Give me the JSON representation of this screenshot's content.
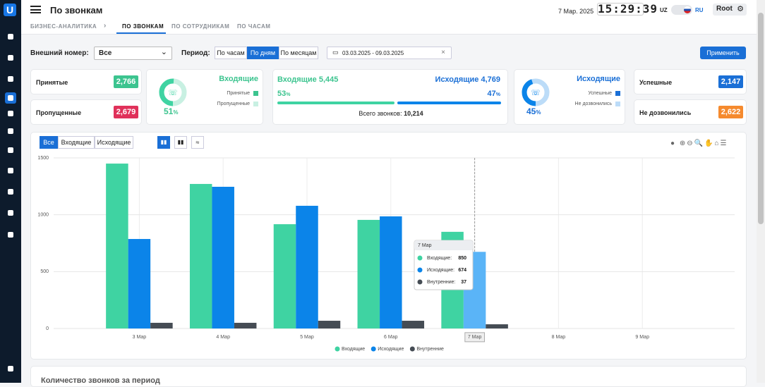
{
  "header": {
    "title": "По звонкам",
    "date": "7 Мар. 2025",
    "clock": "15:29:39",
    "lang_uz": "UZ",
    "lang_ru": "RU",
    "user": "Root"
  },
  "tabs": {
    "breadcrumb": "БИЗНЕС-АНАЛИТИКА",
    "items": [
      "ПО ЗВОНКАМ",
      "ПО СОТРУДНИКАМ",
      "ПО ЧАСАМ"
    ]
  },
  "filters": {
    "number_label": "Внешний номер:",
    "number_value": "Все",
    "period_label": "Период:",
    "period_options": [
      "По часам",
      "По дням",
      "По месяцам"
    ],
    "date_range": "03.03.2025 - 09.03.2025",
    "apply": "Применить"
  },
  "cards": {
    "received": {
      "label": "Принятые",
      "value": "2,766"
    },
    "missed": {
      "label": "Пропущенные",
      "value": "2,679"
    },
    "incoming_donut": {
      "title": "Входящие",
      "percent": 51,
      "unit": "%",
      "legend": [
        "Принятые",
        "Пропущенные"
      ]
    },
    "totals": {
      "incoming_label": "Входящие",
      "incoming_value": "5,445",
      "outgoing_label": "Исходящие",
      "outgoing_value": "4,769",
      "incoming_percent": 53,
      "incoming_unit": "%",
      "outgoing_percent": 47,
      "outgoing_unit": "%",
      "total_label": "Всего звонков:",
      "total_value": "10,214"
    },
    "outgoing_donut": {
      "title": "Исходящие",
      "percent": 45,
      "unit": "%",
      "legend": [
        "Успешные",
        "Не дозвонились"
      ]
    },
    "successful": {
      "label": "Успешные",
      "value": "2,147"
    },
    "unreached": {
      "label": "Не дозвонились",
      "value": "2,622"
    }
  },
  "chart_filters": [
    "Все",
    "Входящие",
    "Исходящие"
  ],
  "chart_data": {
    "type": "bar",
    "categories": [
      "3 Мар",
      "4 Мар",
      "5 Мар",
      "6 Мар",
      "7 Мар",
      "8 Мар",
      "9 Мар"
    ],
    "series": [
      {
        "name": "Входящие",
        "color": "#3fd3a2",
        "values": [
          1450,
          1271,
          917,
          955,
          850,
          null,
          null
        ]
      },
      {
        "name": "Исходящие",
        "color": "#0b84e9",
        "values": [
          787,
          1246,
          1079,
          986,
          674,
          null,
          null
        ]
      },
      {
        "name": "Внутренние",
        "color": "#454c54",
        "values": [
          50,
          50,
          68,
          68,
          37,
          null,
          null
        ]
      }
    ],
    "ylim": [
      0,
      1500
    ],
    "yticks": [
      0,
      500,
      1000,
      1500
    ],
    "grid": true,
    "legend": "bottom",
    "tooltip_labels": [
      "Входящие:",
      "Исходящие:",
      "Внутренние:"
    ]
  },
  "next_card_title": "Количество звонков за период"
}
